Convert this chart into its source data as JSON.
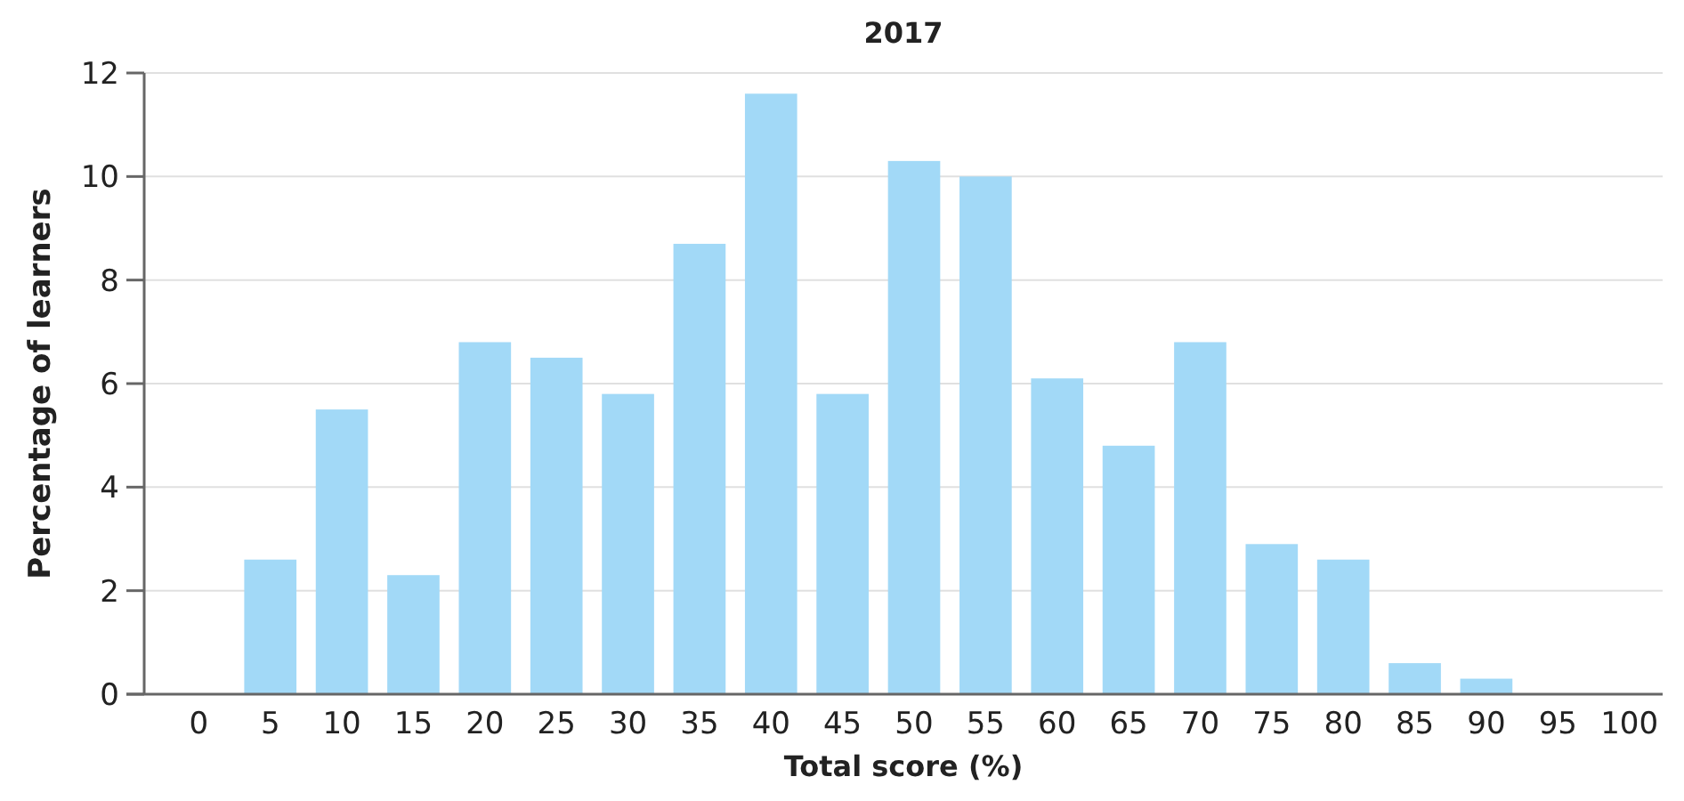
{
  "chart_data": {
    "type": "bar",
    "title": "2017",
    "xlabel": "Total score (%)",
    "ylabel": "Percentage of learners",
    "categories": [
      "0",
      "5",
      "10",
      "15",
      "20",
      "25",
      "30",
      "35",
      "40",
      "45",
      "50",
      "55",
      "60",
      "65",
      "70",
      "75",
      "80",
      "85",
      "90",
      "95",
      "100"
    ],
    "values": [
      0,
      2.6,
      5.5,
      2.3,
      6.8,
      6.5,
      5.8,
      8.7,
      11.6,
      5.8,
      10.3,
      10,
      6.1,
      4.8,
      6.8,
      2.9,
      2.6,
      0.6,
      0.3,
      0,
      0
    ],
    "color": "#a2d9f7",
    "ylim": [
      0,
      12
    ],
    "yticks": [
      0,
      2,
      4,
      6,
      8,
      10,
      12
    ],
    "grid": "y"
  }
}
